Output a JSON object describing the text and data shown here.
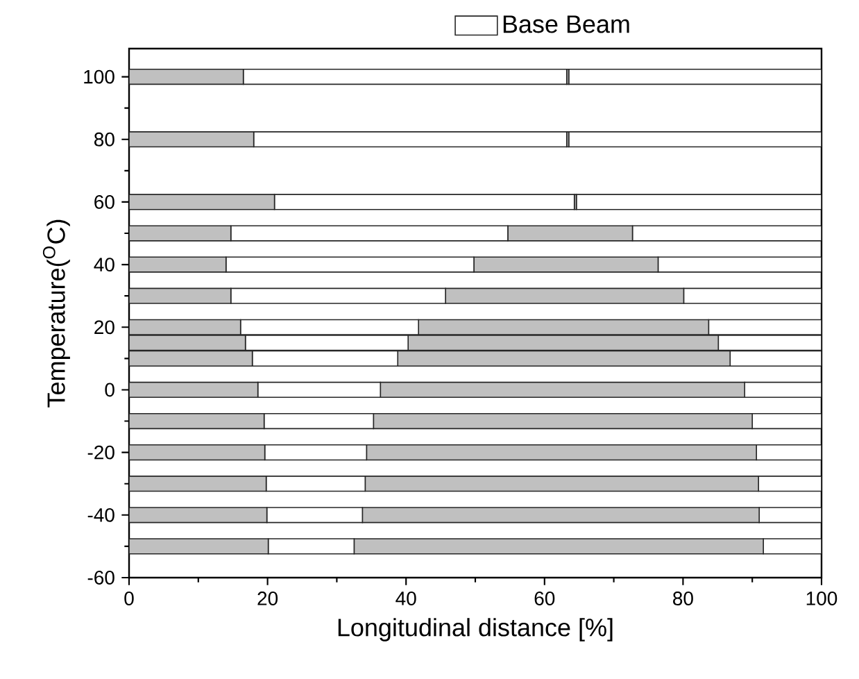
{
  "chart_data": {
    "type": "bar",
    "orientation": "horizontal",
    "stacked": true,
    "xlabel": "Longitudinal distance [%]",
    "ylabel": "Temperature($^{O}$C)",
    "series": [
      {
        "color": "#c0c0c0",
        "x": [
          -50,
          -40,
          -30,
          -20,
          -10,
          0,
          10,
          15,
          20,
          30,
          40,
          50,
          60,
          80,
          100
        ],
        "values": [
          20.1,
          19.9,
          19.8,
          19.6,
          19.5,
          18.6,
          17.8,
          16.8,
          16.1,
          14.7,
          14.0,
          14.7,
          21.0,
          18.0,
          16.5
        ]
      },
      {
        "name": "Base Beam",
        "color": "#ffffff",
        "x": [
          -50,
          -40,
          -30,
          -20,
          -10,
          0,
          10,
          15,
          20,
          30,
          40,
          50,
          60,
          80,
          100
        ],
        "values": [
          12.4,
          13.8,
          14.3,
          14.7,
          15.8,
          17.7,
          21.0,
          23.5,
          25.7,
          31.0,
          35.8,
          40.0,
          43.3,
          45.2,
          46.7
        ]
      },
      {
        "color": "#c0c0c0",
        "x": [
          -50,
          -40,
          -30,
          -20,
          -10,
          0,
          10,
          15,
          20,
          30,
          40,
          50,
          60,
          80,
          100
        ],
        "values": [
          59.1,
          57.3,
          56.8,
          56.3,
          54.7,
          52.6,
          48.0,
          44.8,
          41.9,
          34.4,
          26.6,
          18.0,
          0.3,
          0.3,
          0.3
        ]
      },
      {
        "color": "#ffffff",
        "x": [
          -50,
          -40,
          -30,
          -20,
          -10,
          0,
          10,
          15,
          20,
          30,
          40,
          50,
          60,
          80,
          100
        ],
        "values": [
          8.4,
          9.0,
          9.1,
          9.4,
          10.0,
          11.1,
          13.2,
          14.9,
          16.3,
          19.9,
          23.6,
          27.3,
          35.4,
          36.5,
          36.5
        ]
      }
    ],
    "xlim": [
      0,
      100
    ],
    "xticks": [
      0,
      20,
      40,
      60,
      80,
      100
    ],
    "ylim": [
      -60,
      109
    ],
    "yticks": [
      -60,
      -40,
      -20,
      0,
      20,
      40,
      60,
      80,
      100
    ],
    "legend": "top"
  }
}
